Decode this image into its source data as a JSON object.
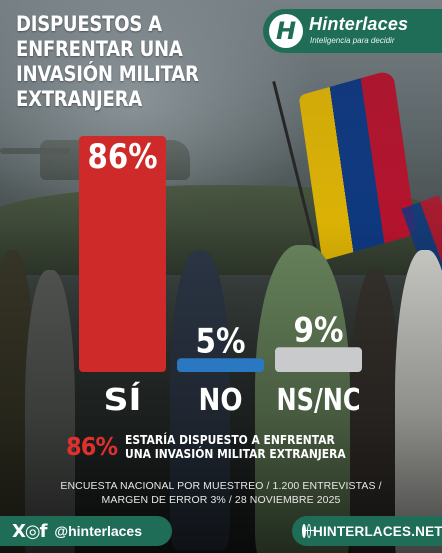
{
  "header": {
    "title": "DISPUESTOS A ENFRENTAR UNA INVASIÓN MILITAR EXTRANJERA"
  },
  "brand": {
    "name": "Hinterlaces",
    "tagline": "Inteligencia para decidir"
  },
  "chart_data": {
    "type": "bar",
    "categories": [
      "SÍ",
      "NO",
      "NS/NC"
    ],
    "values": [
      86,
      5,
      9
    ],
    "value_labels": [
      "86%",
      "5%",
      "9%"
    ],
    "colors": [
      "#cf2a2a",
      "#2b78c2",
      "#c9cacb"
    ],
    "ylim": [
      0,
      100
    ],
    "grid": false,
    "legend": "none"
  },
  "highlight": {
    "percent": "86%",
    "text": "ESTARÍA DISPUESTO A ENFRENTAR UNA INVASIÓN MILITAR EXTRANJERA"
  },
  "methodology": {
    "line1": "ENCUESTA NACIONAL POR MUESTREO / 1.200 ENTREVISTAS /",
    "line2": "MARGEN DE ERROR 3% / 28 NOVIEMBRE 2025"
  },
  "footer": {
    "social_icons": "X◎f",
    "handle": "@hinterlaces",
    "website": "HINTERLACES.NET"
  }
}
